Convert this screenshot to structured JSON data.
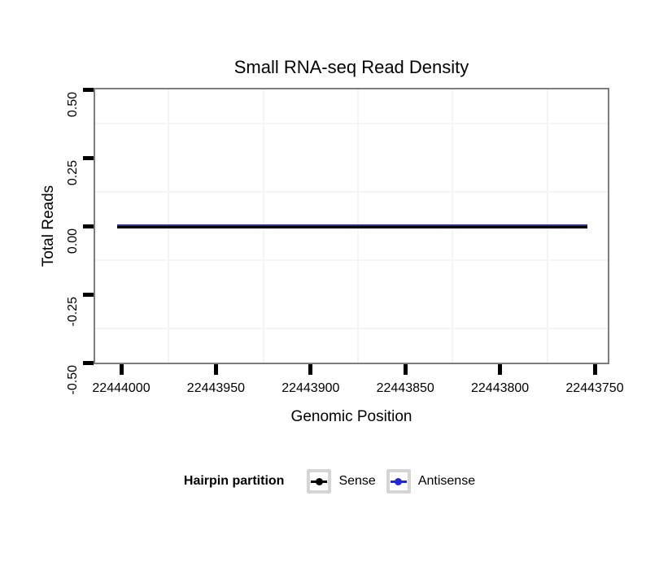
{
  "title": "Small RNA-seq Read Density",
  "axes": {
    "x_label": "Genomic Position",
    "y_label": "Total Reads",
    "x_tick_labels": [
      "22444000",
      "22443950",
      "22443900",
      "22443850",
      "22443800",
      "22443750"
    ],
    "y_tick_labels": [
      "0.50",
      "0.25",
      "0.00",
      "-0.25",
      "-0.50"
    ]
  },
  "legend": {
    "title": "Hairpin partition",
    "entries": [
      {
        "label": "Sense",
        "color": "#000000"
      },
      {
        "label": "Antisense",
        "color": "#2222ee"
      }
    ]
  },
  "chart_data": {
    "type": "line",
    "title": "Small RNA-seq Read Density",
    "xlabel": "Genomic Position",
    "ylabel": "Total Reads",
    "x_axis": {
      "ticks": [
        22444000,
        22443950,
        22443900,
        22443850,
        22443800,
        22443750
      ],
      "reversed": true,
      "approx_display_range": [
        22444021,
        22443742
      ]
    },
    "y_axis": {
      "ticks": [
        0.5,
        0.25,
        0.0,
        -0.25,
        -0.5
      ],
      "range": [
        -0.5,
        0.5
      ]
    },
    "grid": {
      "major": false,
      "minor": true,
      "minor_color": "#f4f4f4"
    },
    "legend_position": "bottom",
    "legend_title": "Hairpin partition",
    "series": [
      {
        "name": "Sense",
        "color": "#000000",
        "x": [
          22444002,
          22443754
        ],
        "values": [
          0,
          0
        ]
      },
      {
        "name": "Antisense",
        "color": "#2222ee",
        "x": [
          22444002,
          22443754
        ],
        "values": [
          0,
          0
        ]
      }
    ],
    "colors": {
      "panel_border": "#7d7d7d",
      "tick": "#000000",
      "zero_line_edge": "#2d2d8e",
      "legend_key_border": "#d5d5d5"
    }
  }
}
